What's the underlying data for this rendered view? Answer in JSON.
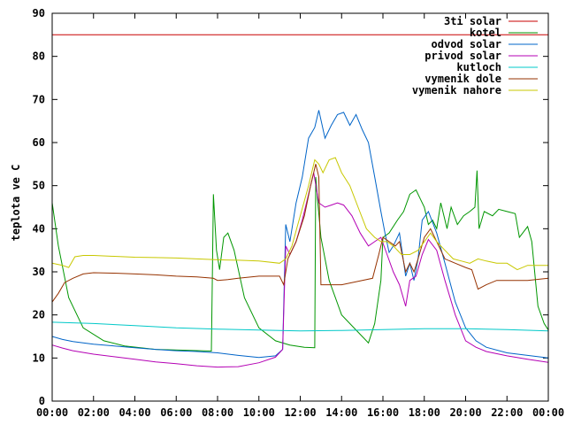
{
  "chart_data": {
    "type": "line",
    "title": "",
    "xlabel": "",
    "ylabel": "teplota ve C",
    "xlim": [
      0,
      24
    ],
    "ylim": [
      0,
      90
    ],
    "x_ticks": [
      {
        "v": 0,
        "label": "00:00"
      },
      {
        "v": 2,
        "label": "02:00"
      },
      {
        "v": 4,
        "label": "04:00"
      },
      {
        "v": 6,
        "label": "06:00"
      },
      {
        "v": 8,
        "label": "08:00"
      },
      {
        "v": 10,
        "label": "10:00"
      },
      {
        "v": 12,
        "label": "12:00"
      },
      {
        "v": 14,
        "label": "14:00"
      },
      {
        "v": 16,
        "label": "16:00"
      },
      {
        "v": 18,
        "label": "18:00"
      },
      {
        "v": 20,
        "label": "20:00"
      },
      {
        "v": 22,
        "label": "22:00"
      },
      {
        "v": 24,
        "label": "00:00"
      }
    ],
    "y_ticks": [
      {
        "v": 0,
        "label": "0"
      },
      {
        "v": 10,
        "label": "10"
      },
      {
        "v": 20,
        "label": "20"
      },
      {
        "v": 30,
        "label": "30"
      },
      {
        "v": 40,
        "label": "40"
      },
      {
        "v": 50,
        "label": "50"
      },
      {
        "v": 60,
        "label": "60"
      },
      {
        "v": 70,
        "label": "70"
      },
      {
        "v": 80,
        "label": "80"
      },
      {
        "v": 90,
        "label": "90"
      }
    ],
    "grid": false,
    "legend_position": "top-right",
    "series": [
      {
        "name": "3ti solar",
        "color": "#c80000",
        "points": [
          [
            0,
            85
          ],
          [
            24,
            85
          ]
        ]
      },
      {
        "name": "kotel",
        "color": "#009600",
        "points": [
          [
            0,
            46
          ],
          [
            0.3,
            36
          ],
          [
            0.8,
            24
          ],
          [
            1.5,
            17
          ],
          [
            2.5,
            14
          ],
          [
            3.5,
            12.8
          ],
          [
            5,
            12
          ],
          [
            6.5,
            11.8
          ],
          [
            7.7,
            11.6
          ],
          [
            7.75,
            30
          ],
          [
            7.8,
            48
          ],
          [
            7.95,
            35
          ],
          [
            8.1,
            30.5
          ],
          [
            8.3,
            38
          ],
          [
            8.5,
            39
          ],
          [
            8.8,
            35
          ],
          [
            9.3,
            24
          ],
          [
            10,
            17
          ],
          [
            10.8,
            14
          ],
          [
            11.5,
            13
          ],
          [
            12.2,
            12.5
          ],
          [
            12.7,
            12.4
          ],
          [
            12.75,
            52
          ],
          [
            12.85,
            46
          ],
          [
            13,
            38
          ],
          [
            13.4,
            28
          ],
          [
            14,
            20
          ],
          [
            14.8,
            16
          ],
          [
            15.3,
            13.5
          ],
          [
            15.6,
            18
          ],
          [
            15.9,
            28
          ],
          [
            16,
            38
          ],
          [
            16.3,
            39
          ],
          [
            16.7,
            42
          ],
          [
            17,
            44
          ],
          [
            17.3,
            48
          ],
          [
            17.6,
            49
          ],
          [
            17.8,
            47
          ],
          [
            18,
            45
          ],
          [
            18.2,
            41
          ],
          [
            18.4,
            42
          ],
          [
            18.6,
            40
          ],
          [
            18.8,
            46
          ],
          [
            19.1,
            40
          ],
          [
            19.3,
            45
          ],
          [
            19.6,
            41
          ],
          [
            19.9,
            43
          ],
          [
            20.2,
            44
          ],
          [
            20.45,
            45
          ],
          [
            20.55,
            53.5
          ],
          [
            20.65,
            40
          ],
          [
            20.9,
            44
          ],
          [
            21.3,
            43
          ],
          [
            21.6,
            44.5
          ],
          [
            22,
            44
          ],
          [
            22.4,
            43.5
          ],
          [
            22.6,
            38
          ],
          [
            23,
            40.5
          ],
          [
            23.2,
            37
          ],
          [
            23.5,
            22
          ],
          [
            23.8,
            18
          ],
          [
            24,
            16.5
          ]
        ]
      },
      {
        "name": "odvod solar",
        "color": "#0064c8",
        "points": [
          [
            0,
            15
          ],
          [
            0.5,
            14.3
          ],
          [
            1,
            13.8
          ],
          [
            2,
            13.2
          ],
          [
            3,
            12.8
          ],
          [
            4,
            12.4
          ],
          [
            5,
            12
          ],
          [
            6,
            11.7
          ],
          [
            7,
            11.5
          ],
          [
            8,
            11.2
          ],
          [
            9,
            10.6
          ],
          [
            10,
            10.1
          ],
          [
            10.8,
            10.5
          ],
          [
            11.15,
            12
          ],
          [
            11.3,
            41
          ],
          [
            11.5,
            37
          ],
          [
            11.8,
            46
          ],
          [
            12.1,
            52
          ],
          [
            12.4,
            61
          ],
          [
            12.7,
            63.5
          ],
          [
            12.9,
            67.5
          ],
          [
            13.2,
            61
          ],
          [
            13.5,
            64
          ],
          [
            13.8,
            66.5
          ],
          [
            14.1,
            67
          ],
          [
            14.4,
            64
          ],
          [
            14.7,
            66.5
          ],
          [
            15,
            63
          ],
          [
            15.3,
            60
          ],
          [
            15.6,
            52
          ],
          [
            15.9,
            44
          ],
          [
            16.1,
            39
          ],
          [
            16.3,
            34.5
          ],
          [
            16.5,
            36
          ],
          [
            16.8,
            39
          ],
          [
            17.1,
            29
          ],
          [
            17.3,
            32
          ],
          [
            17.5,
            28
          ],
          [
            17.7,
            33
          ],
          [
            17.9,
            42
          ],
          [
            18.2,
            44
          ],
          [
            18.6,
            39
          ],
          [
            19,
            32
          ],
          [
            19.5,
            23
          ],
          [
            20,
            17
          ],
          [
            20.5,
            14
          ],
          [
            21,
            12.5
          ],
          [
            22,
            11.2
          ],
          [
            23,
            10.6
          ],
          [
            24,
            10
          ]
        ]
      },
      {
        "name": "privod solar",
        "color": "#b400b4",
        "points": [
          [
            0,
            13
          ],
          [
            0.5,
            12.3
          ],
          [
            1,
            11.7
          ],
          [
            2,
            10.9
          ],
          [
            3,
            10.3
          ],
          [
            4,
            9.7
          ],
          [
            5,
            9.1
          ],
          [
            6,
            8.7
          ],
          [
            7,
            8.2
          ],
          [
            8,
            7.9
          ],
          [
            9,
            8
          ],
          [
            10,
            8.9
          ],
          [
            10.8,
            10.2
          ],
          [
            11.15,
            12
          ],
          [
            11.3,
            36
          ],
          [
            11.5,
            34
          ],
          [
            11.8,
            37
          ],
          [
            12.1,
            42
          ],
          [
            12.4,
            48
          ],
          [
            12.65,
            53
          ],
          [
            12.9,
            46
          ],
          [
            13.2,
            45
          ],
          [
            13.5,
            45.5
          ],
          [
            13.8,
            46
          ],
          [
            14.1,
            45.5
          ],
          [
            14.5,
            43
          ],
          [
            14.9,
            39
          ],
          [
            15.3,
            36
          ],
          [
            15.6,
            37
          ],
          [
            15.9,
            38
          ],
          [
            16.2,
            34
          ],
          [
            16.5,
            30
          ],
          [
            16.8,
            27
          ],
          [
            17.1,
            22
          ],
          [
            17.3,
            28
          ],
          [
            17.6,
            29
          ],
          [
            17.9,
            34
          ],
          [
            18.2,
            37.5
          ],
          [
            18.6,
            35
          ],
          [
            19,
            28
          ],
          [
            19.5,
            20
          ],
          [
            20,
            14
          ],
          [
            20.5,
            12.5
          ],
          [
            21,
            11.5
          ],
          [
            22,
            10.5
          ],
          [
            23,
            9.7
          ],
          [
            24,
            9
          ]
        ]
      },
      {
        "name": "kutloch",
        "color": "#00c8c8",
        "points": [
          [
            0,
            18.3
          ],
          [
            2,
            18
          ],
          [
            4,
            17.5
          ],
          [
            6,
            17
          ],
          [
            8,
            16.7
          ],
          [
            10,
            16.5
          ],
          [
            12,
            16.3
          ],
          [
            14,
            16.4
          ],
          [
            16,
            16.6
          ],
          [
            18,
            16.8
          ],
          [
            20,
            16.8
          ],
          [
            22,
            16.6
          ],
          [
            24,
            16.3
          ]
        ]
      },
      {
        "name": "vymenik dole",
        "color": "#963200",
        "points": [
          [
            0,
            23
          ],
          [
            0.3,
            25
          ],
          [
            0.6,
            27.5
          ],
          [
            1,
            28.5
          ],
          [
            1.5,
            29.5
          ],
          [
            2,
            29.8
          ],
          [
            3,
            29.7
          ],
          [
            4,
            29.5
          ],
          [
            5,
            29.3
          ],
          [
            6,
            29
          ],
          [
            7,
            28.8
          ],
          [
            7.8,
            28.5
          ],
          [
            8,
            28
          ],
          [
            8.5,
            28.2
          ],
          [
            9,
            28.5
          ],
          [
            10,
            29
          ],
          [
            11,
            29
          ],
          [
            11.2,
            27
          ],
          [
            11.4,
            33
          ],
          [
            11.8,
            37
          ],
          [
            12.2,
            43
          ],
          [
            12.5,
            50
          ],
          [
            12.75,
            55
          ],
          [
            12.9,
            52
          ],
          [
            13,
            27
          ],
          [
            14,
            27
          ],
          [
            15,
            28
          ],
          [
            15.5,
            28.5
          ],
          [
            15.8,
            34
          ],
          [
            16,
            38
          ],
          [
            16.3,
            37
          ],
          [
            16.6,
            36
          ],
          [
            16.8,
            37
          ],
          [
            17.1,
            30
          ],
          [
            17.3,
            32
          ],
          [
            17.5,
            30
          ],
          [
            17.7,
            33
          ],
          [
            18,
            38
          ],
          [
            18.3,
            40
          ],
          [
            18.6,
            37
          ],
          [
            19,
            33
          ],
          [
            19.5,
            32
          ],
          [
            20,
            31
          ],
          [
            20.3,
            30.5
          ],
          [
            20.6,
            26
          ],
          [
            21,
            27
          ],
          [
            21.5,
            28
          ],
          [
            22,
            28
          ],
          [
            23,
            28
          ],
          [
            24,
            28.5
          ]
        ]
      },
      {
        "name": "vymenik nahore",
        "color": "#c8c800",
        "points": [
          [
            0,
            32
          ],
          [
            0.5,
            31.5
          ],
          [
            0.8,
            31
          ],
          [
            1.1,
            33.5
          ],
          [
            1.5,
            33.8
          ],
          [
            2,
            33.8
          ],
          [
            3,
            33.6
          ],
          [
            4,
            33.4
          ],
          [
            5,
            33.3
          ],
          [
            6,
            33.2
          ],
          [
            7,
            33
          ],
          [
            8,
            32.8
          ],
          [
            9,
            32.7
          ],
          [
            10,
            32.5
          ],
          [
            11,
            32
          ],
          [
            11.3,
            33
          ],
          [
            11.6,
            36
          ],
          [
            12,
            43
          ],
          [
            12.4,
            50
          ],
          [
            12.7,
            56
          ],
          [
            12.9,
            55
          ],
          [
            13.1,
            53
          ],
          [
            13.4,
            56
          ],
          [
            13.7,
            56.5
          ],
          [
            14,
            53
          ],
          [
            14.4,
            50
          ],
          [
            14.8,
            45
          ],
          [
            15.2,
            40
          ],
          [
            15.6,
            38
          ],
          [
            15.9,
            37
          ],
          [
            16.2,
            37
          ],
          [
            16.5,
            36
          ],
          [
            16.9,
            34
          ],
          [
            17.3,
            34
          ],
          [
            17.7,
            35
          ],
          [
            18,
            37
          ],
          [
            18.3,
            39
          ],
          [
            18.6,
            37
          ],
          [
            19,
            35
          ],
          [
            19.4,
            33
          ],
          [
            19.8,
            32.5
          ],
          [
            20.2,
            32
          ],
          [
            20.6,
            33
          ],
          [
            21,
            32.5
          ],
          [
            21.5,
            32
          ],
          [
            22,
            32
          ],
          [
            22.5,
            30.5
          ],
          [
            23,
            31.5
          ],
          [
            24,
            31.5
          ]
        ]
      }
    ]
  }
}
